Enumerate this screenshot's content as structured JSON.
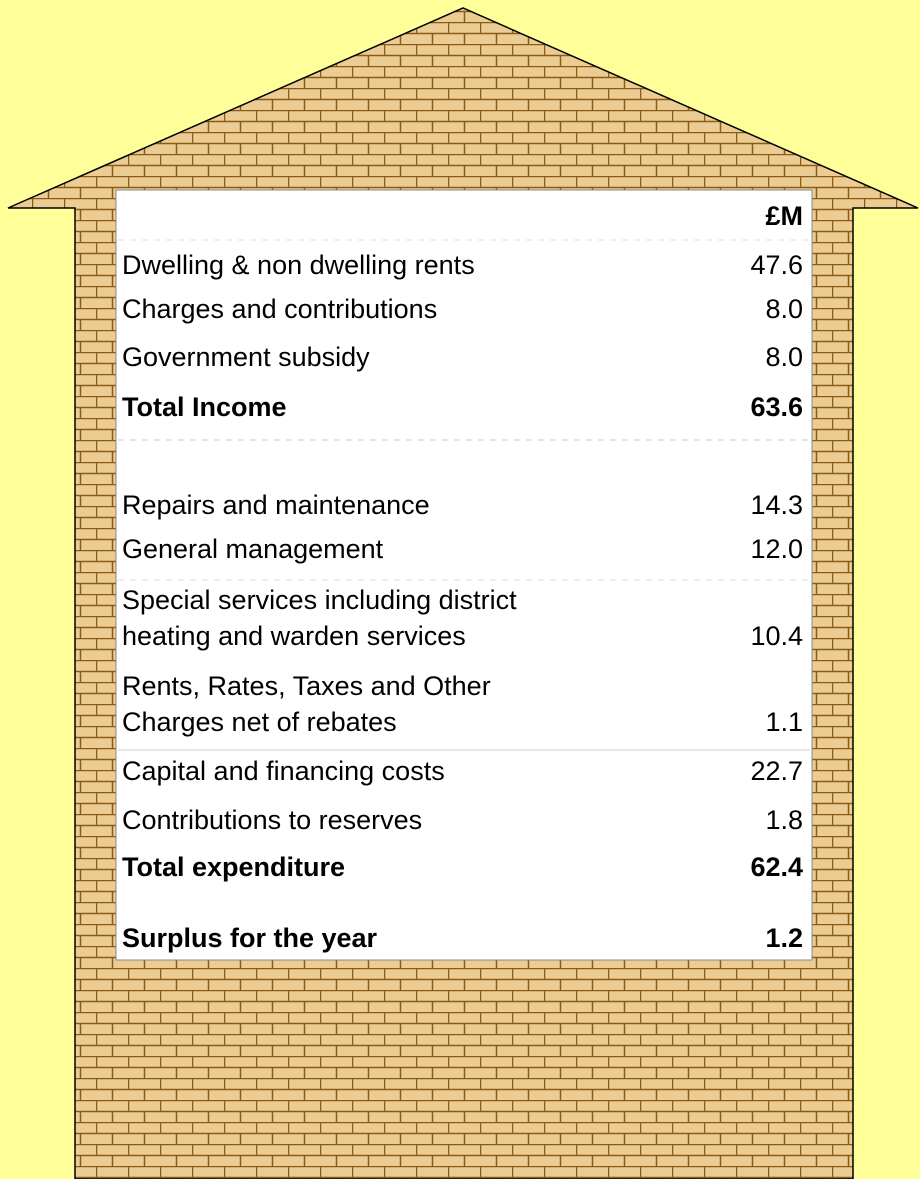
{
  "table": {
    "header": "£M",
    "rows": [
      {
        "label": [
          "Dwelling & non dwelling rents"
        ],
        "value": "47.6"
      },
      {
        "label": [
          "Charges and contributions"
        ],
        "value": "8.0"
      },
      {
        "label": [
          "Government subsidy"
        ],
        "value": "8.0"
      },
      {
        "label": [
          "Total Income"
        ],
        "value": "63.6",
        "bold": true
      },
      {
        "label": [
          "Repairs and maintenance"
        ],
        "value": "14.3"
      },
      {
        "label": [
          "General management"
        ],
        "value": "12.0"
      },
      {
        "label": [
          "Special services including district",
          "heating and warden services"
        ],
        "value": "10.4"
      },
      {
        "label": [
          "Rents, Rates, Taxes and Other",
          "Charges net of rebates"
        ],
        "value": "1.1"
      },
      {
        "label": [
          "Capital and financing costs"
        ],
        "value": "22.7"
      },
      {
        "label": [
          "Contributions to reserves"
        ],
        "value": "1.8"
      },
      {
        "label": [
          "Total expenditure"
        ],
        "value": "62.4",
        "bold": true
      },
      {
        "label": [
          "Surplus for the year"
        ],
        "value": "1.2",
        "bold": true
      }
    ]
  }
}
